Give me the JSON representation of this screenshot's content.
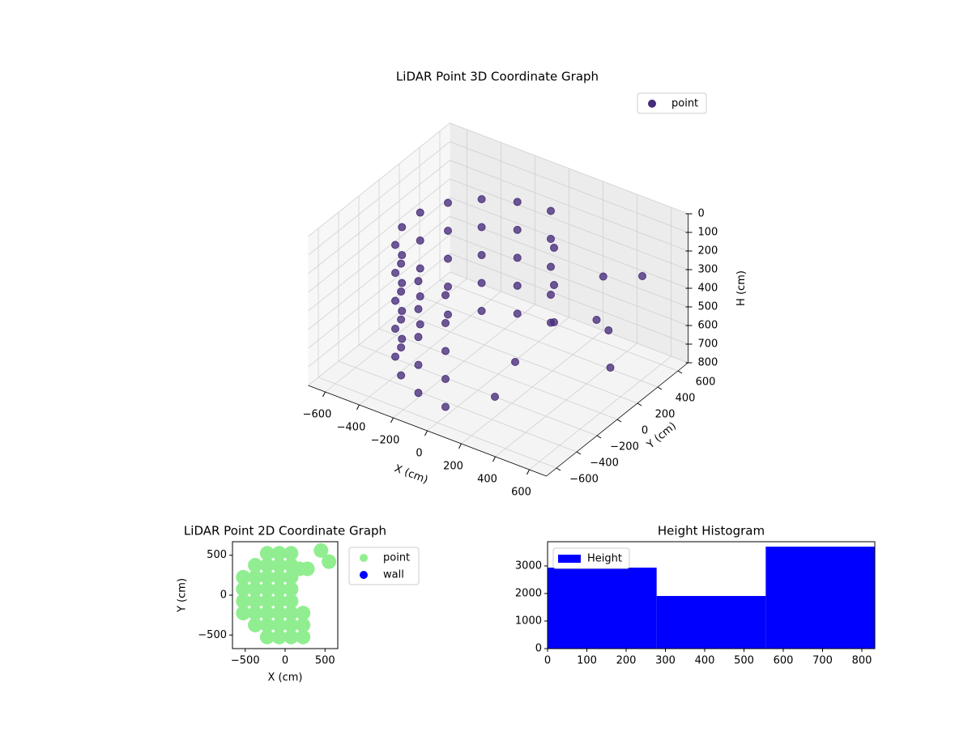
{
  "chart_data": [
    {
      "type": "scatter3d",
      "title": "LiDAR Point 3D Coordinate Graph",
      "xlabel": "X (cm)",
      "ylabel": "Y (cm)",
      "zlabel": "H (cm)",
      "xlim": [
        -700,
        700
      ],
      "ylim": [
        -700,
        700
      ],
      "zlim": [
        0,
        800
      ],
      "zinvert": true,
      "xticks": [
        {
          "value": -600,
          "label": "−600"
        },
        {
          "value": -400,
          "label": "−400"
        },
        {
          "value": -200,
          "label": "−200"
        },
        0,
        200,
        400,
        600
      ],
      "yticks": [
        {
          "value": -600,
          "label": "−600"
        },
        {
          "value": -400,
          "label": "−400"
        },
        {
          "value": -200,
          "label": "−200"
        },
        0,
        200,
        400,
        600
      ],
      "zticks": [
        0,
        100,
        200,
        300,
        400,
        500,
        600,
        700,
        800
      ],
      "legend": "upper right",
      "series": [
        {
          "name": "point",
          "color": "#472c7a",
          "x": [
            0,
            -178,
            -334,
            -450,
            -512,
            -512,
            -450,
            -334,
            -178,
            0,
            0,
            -178,
            -334,
            -450,
            -512,
            -512,
            -450,
            -334,
            -178,
            0,
            0,
            -178,
            -334,
            -450,
            -512,
            -512,
            -450,
            -334,
            -178,
            0,
            0,
            -178,
            -334,
            -450,
            -512,
            -512,
            -450,
            -334,
            -178,
            0,
            0,
            -178,
            -334,
            -450,
            -512,
            -512,
            -450,
            -334,
            -178,
            0,
            150,
            150,
            150,
            100,
            100,
            350,
            400,
            500,
            600,
            550
          ],
          "y": [
            520,
            489,
            398,
            260,
            90,
            -90,
            -260,
            -398,
            -489,
            -520,
            520,
            489,
            398,
            260,
            90,
            -90,
            -260,
            -398,
            -489,
            -520,
            520,
            489,
            398,
            260,
            90,
            -90,
            -260,
            -398,
            -489,
            -520,
            520,
            489,
            398,
            260,
            90,
            -90,
            -260,
            -398,
            -489,
            -520,
            520,
            489,
            398,
            260,
            90,
            -90,
            -260,
            -398,
            -489,
            -520,
            300,
            300,
            300,
            0,
            -200,
            450,
            300,
            250,
            100,
            500
          ],
          "z": [
            150,
            150,
            150,
            150,
            150,
            150,
            150,
            150,
            150,
            150,
            300,
            300,
            300,
            300,
            300,
            300,
            300,
            300,
            300,
            300,
            450,
            450,
            450,
            450,
            450,
            450,
            450,
            450,
            450,
            450,
            600,
            600,
            600,
            600,
            600,
            600,
            600,
            600,
            600,
            600,
            750,
            750,
            750,
            750,
            750,
            750,
            750,
            750,
            750,
            750,
            200,
            400,
            600,
            700,
            800,
            350,
            500,
            500,
            600,
            300
          ]
        }
      ]
    },
    {
      "type": "scatter",
      "title": "LiDAR Point 2D Coordinate Graph",
      "xlabel": "X (cm)",
      "ylabel": "Y (cm)",
      "xlim": [
        -660,
        660
      ],
      "ylim": [
        -670,
        670
      ],
      "xticks": [
        {
          "value": -500,
          "label": "−500"
        },
        0,
        500
      ],
      "yticks": [
        {
          "value": -500,
          "label": "−500"
        },
        0,
        500
      ],
      "legend": "outside right",
      "series": [
        {
          "name": "point",
          "color": "#90ee90",
          "x": [
            -225,
            -75,
            75,
            -375,
            -225,
            -75,
            75,
            -525,
            -375,
            -225,
            -75,
            75,
            -525,
            -375,
            -225,
            -75,
            75,
            -525,
            -375,
            -225,
            -75,
            75,
            -525,
            -375,
            -225,
            -75,
            75,
            225,
            -375,
            -225,
            -75,
            75,
            225,
            -225,
            -75,
            75,
            225,
            180,
            280,
            450,
            550
          ],
          "y": [
            525,
            525,
            525,
            375,
            375,
            375,
            375,
            225,
            225,
            225,
            225,
            225,
            75,
            75,
            75,
            75,
            75,
            -75,
            -75,
            -75,
            -75,
            -75,
            -225,
            -225,
            -225,
            -225,
            -225,
            -225,
            -375,
            -375,
            -375,
            -375,
            -375,
            -525,
            -525,
            -525,
            -525,
            330,
            330,
            560,
            420
          ]
        },
        {
          "name": "wall",
          "color": "#0000ff",
          "x": [],
          "y": []
        }
      ]
    },
    {
      "type": "histogram",
      "title": "Height Histogram",
      "name": "Height",
      "color": "#0000ff",
      "bins": [
        0,
        277.67,
        555.33,
        833
      ],
      "values": [
        2940,
        1910,
        3700
      ],
      "xlim": [
        0,
        833
      ],
      "ylim": [
        0,
        3880
      ],
      "xticks": [
        0,
        100,
        200,
        300,
        400,
        500,
        600,
        700,
        800
      ],
      "yticks": [
        0,
        1000,
        2000,
        3000
      ],
      "legend": "upper left"
    }
  ]
}
